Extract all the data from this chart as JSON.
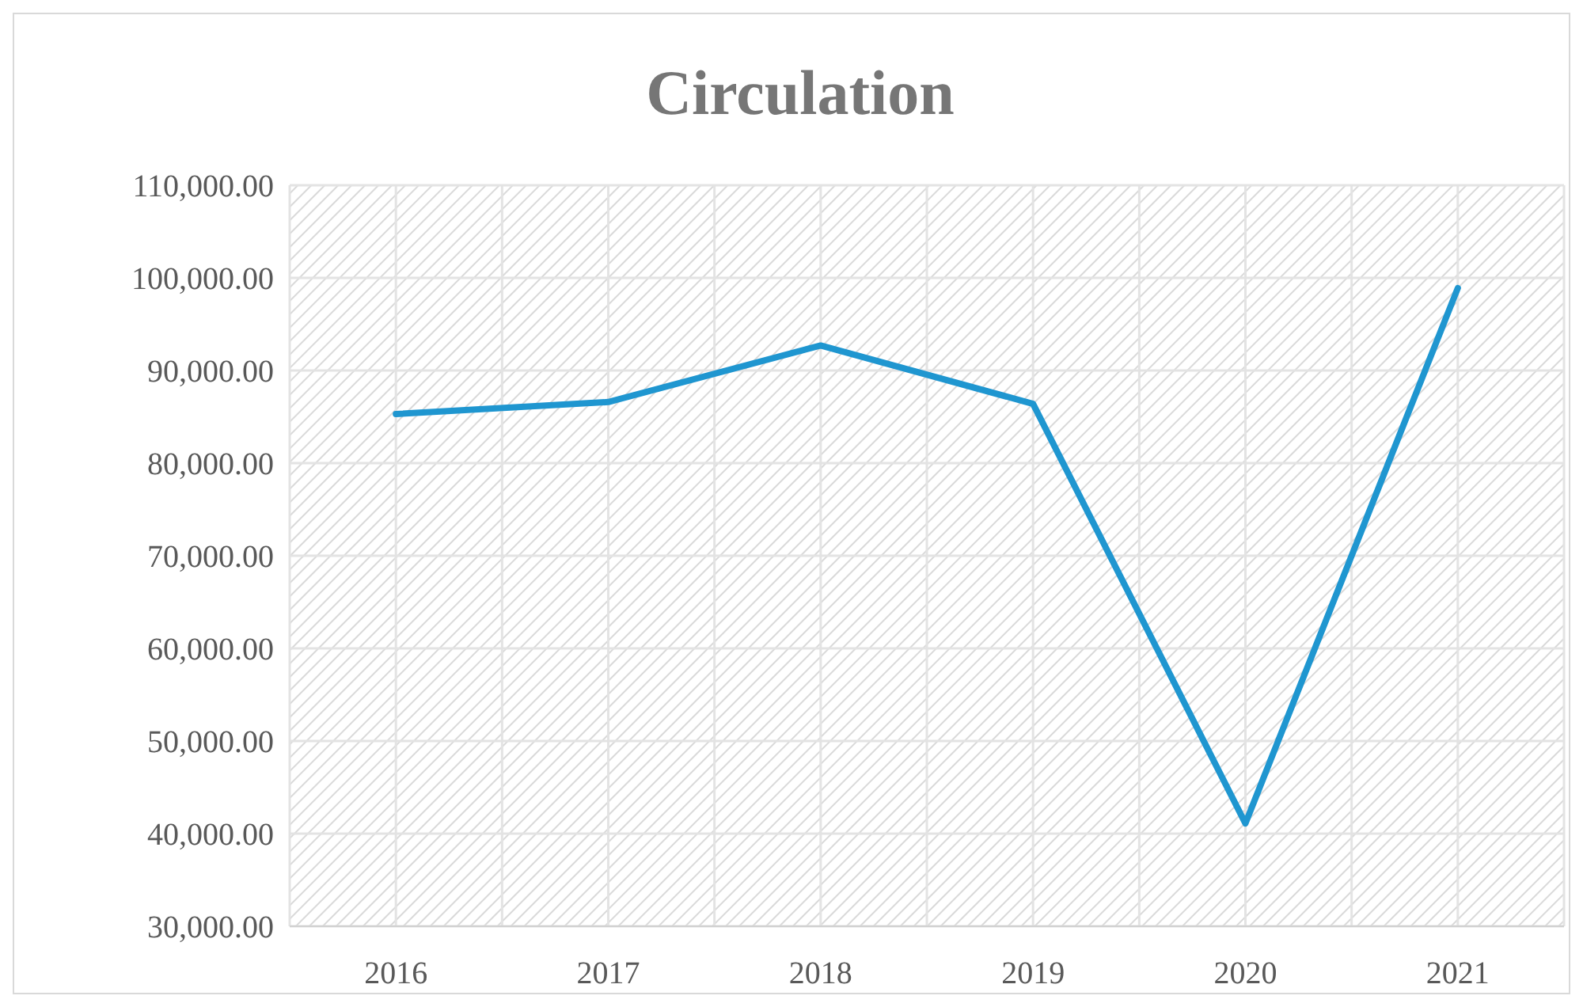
{
  "chart_data": {
    "type": "line",
    "title": "Circulation",
    "categories": [
      "2016",
      "2017",
      "2018",
      "2019",
      "2020",
      "2021"
    ],
    "series": [
      {
        "color": "#1f96d0",
        "values": [
          85300,
          86600,
          92700,
          86400,
          41100,
          98900
        ]
      }
    ],
    "ylim": [
      30000,
      110000
    ],
    "yticks": [
      {
        "value": 30000,
        "label": "30,000.00"
      },
      {
        "value": 40000,
        "label": "40,000.00"
      },
      {
        "value": 50000,
        "label": "50,000.00"
      },
      {
        "value": 60000,
        "label": "60,000.00"
      },
      {
        "value": 70000,
        "label": "70,000.00"
      },
      {
        "value": 80000,
        "label": "80,000.00"
      },
      {
        "value": 90000,
        "label": "90,000.00"
      },
      {
        "value": 100000,
        "label": "100,000.00"
      },
      {
        "value": 110000,
        "label": "110,000.00"
      }
    ],
    "grid": true,
    "marker": "none",
    "line_style": "solid"
  }
}
